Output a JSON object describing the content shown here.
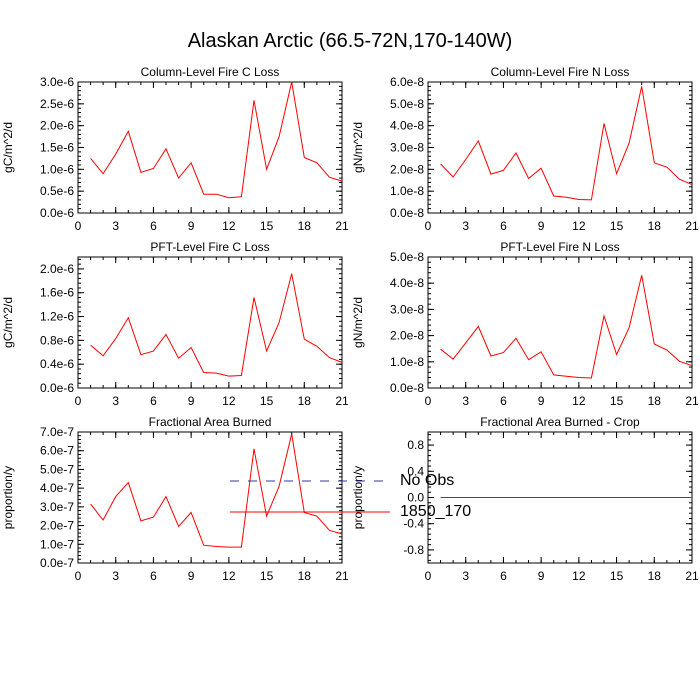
{
  "title": "Alaskan Arctic (66.5-72N,170-140W)",
  "colors": {
    "line": "#ff0000",
    "obs": "#3333aa",
    "axis": "#000000"
  },
  "legend": [
    {
      "label": "No Obs",
      "style": "dashed",
      "color": "#3333aa"
    },
    {
      "label": "1850_170",
      "style": "solid",
      "color": "#ff0000"
    }
  ],
  "chart_data": [
    {
      "type": "line",
      "title": "Column-Level Fire C Loss",
      "ylabel": "gC/m^2/d",
      "xlim": [
        0,
        21
      ],
      "ylim": [
        0,
        3e-06
      ],
      "yticks": [
        0,
        5e-07,
        1e-06,
        1.5e-06,
        2e-06,
        2.5e-06,
        3e-06
      ],
      "ytick_labels": [
        "0.0e-6",
        "0.5e-6",
        "1.0e-6",
        "1.5e-6",
        "2.0e-6",
        "2.5e-6",
        "3.0e-6"
      ],
      "xticks": [
        0,
        3,
        6,
        9,
        12,
        15,
        18,
        21
      ],
      "xtick_labels": [
        "0",
        "3",
        "6",
        "9",
        "12",
        "15",
        "18",
        "21"
      ],
      "series": [
        {
          "name": "1850_170",
          "x": [
            1,
            2,
            3,
            4,
            5,
            6,
            7,
            8,
            9,
            10,
            11,
            12,
            13,
            14,
            15,
            16,
            17,
            18,
            19,
            20,
            21
          ],
          "values": [
            1.25e-06,
            9e-07,
            1.35e-06,
            1.87e-06,
            9.3e-07,
            1.02e-06,
            1.47e-06,
            8e-07,
            1.15e-06,
            4.3e-07,
            4.3e-07,
            3.5e-07,
            3.7e-07,
            2.58e-06,
            1e-06,
            1.75e-06,
            3e-06,
            1.27e-06,
            1.15e-06,
            8.2e-07,
            7.3e-07
          ]
        }
      ]
    },
    {
      "type": "line",
      "title": "Column-Level Fire N Loss",
      "ylabel": "gN/m^2/d",
      "xlim": [
        0,
        21
      ],
      "ylim": [
        0,
        6e-08
      ],
      "yticks": [
        0,
        1e-08,
        2e-08,
        3e-08,
        4e-08,
        5e-08,
        6e-08
      ],
      "ytick_labels": [
        "0.0e-8",
        "1.0e-8",
        "2.0e-8",
        "3.0e-8",
        "4.0e-8",
        "5.0e-8",
        "6.0e-8"
      ],
      "xticks": [
        0,
        3,
        6,
        9,
        12,
        15,
        18,
        21
      ],
      "xtick_labels": [
        "0",
        "3",
        "6",
        "9",
        "12",
        "15",
        "18",
        "21"
      ],
      "series": [
        {
          "name": "1850_170",
          "x": [
            1,
            2,
            3,
            4,
            5,
            6,
            7,
            8,
            9,
            10,
            11,
            12,
            13,
            14,
            15,
            16,
            17,
            18,
            19,
            20,
            21
          ],
          "values": [
            2.25e-08,
            1.65e-08,
            2.45e-08,
            3.3e-08,
            1.78e-08,
            1.95e-08,
            2.75e-08,
            1.58e-08,
            2.05e-08,
            7.8e-09,
            7.2e-09,
            6.2e-09,
            6e-09,
            4.1e-08,
            1.8e-08,
            3.2e-08,
            5.8e-08,
            2.3e-08,
            2.1e-08,
            1.55e-08,
            1.3e-08
          ]
        }
      ]
    },
    {
      "type": "line",
      "title": "PFT-Level Fire C Loss",
      "ylabel": "gC/m^2/d",
      "xlim": [
        0,
        21
      ],
      "ylim": [
        0,
        2.2e-06
      ],
      "yticks": [
        0,
        4e-07,
        8e-07,
        1.2e-06,
        1.6e-06,
        2e-06
      ],
      "ytick_labels": [
        "0.0e-6",
        "0.4e-6",
        "0.8e-6",
        "1.2e-6",
        "1.6e-6",
        "2.0e-6"
      ],
      "xticks": [
        0,
        3,
        6,
        9,
        12,
        15,
        18,
        21
      ],
      "xtick_labels": [
        "0",
        "3",
        "6",
        "9",
        "12",
        "15",
        "18",
        "21"
      ],
      "series": [
        {
          "name": "1850_170",
          "x": [
            1,
            2,
            3,
            4,
            5,
            6,
            7,
            8,
            9,
            10,
            11,
            12,
            13,
            14,
            15,
            16,
            17,
            18,
            19,
            20,
            21
          ],
          "values": [
            7.2e-07,
            5.4e-07,
            8.3e-07,
            1.18e-06,
            5.6e-07,
            6.2e-07,
            9e-07,
            5e-07,
            6.8e-07,
            2.6e-07,
            2.5e-07,
            2e-07,
            2.1e-07,
            1.52e-06,
            6.2e-07,
            1.1e-06,
            1.92e-06,
            8.2e-07,
            7e-07,
            5.1e-07,
            4.3e-07
          ]
        }
      ]
    },
    {
      "type": "line",
      "title": "PFT-Level Fire N Loss",
      "ylabel": "gN/m^2/d",
      "xlim": [
        0,
        21
      ],
      "ylim": [
        0,
        5e-08
      ],
      "yticks": [
        0,
        1e-08,
        2e-08,
        3e-08,
        4e-08,
        5e-08
      ],
      "ytick_labels": [
        "0.0e-8",
        "1.0e-8",
        "2.0e-8",
        "3.0e-8",
        "4.0e-8",
        "5.0e-8"
      ],
      "xticks": [
        0,
        3,
        6,
        9,
        12,
        15,
        18,
        21
      ],
      "xtick_labels": [
        "0",
        "3",
        "6",
        "9",
        "12",
        "15",
        "18",
        "21"
      ],
      "series": [
        {
          "name": "1850_170",
          "x": [
            1,
            2,
            3,
            4,
            5,
            6,
            7,
            8,
            9,
            10,
            11,
            12,
            13,
            14,
            15,
            16,
            17,
            18,
            19,
            20,
            21
          ],
          "values": [
            1.48e-08,
            1.1e-08,
            1.72e-08,
            2.35e-08,
            1.22e-08,
            1.35e-08,
            1.9e-08,
            1.08e-08,
            1.38e-08,
            5e-09,
            4.5e-09,
            4e-09,
            3.8e-09,
            2.75e-08,
            1.28e-08,
            2.3e-08,
            4.3e-08,
            1.68e-08,
            1.45e-08,
            1.02e-08,
            8.5e-09
          ]
        }
      ]
    },
    {
      "type": "line",
      "title": "Fractional Area Burned",
      "ylabel": "proportion/y",
      "xlim": [
        0,
        21
      ],
      "ylim": [
        0,
        7e-07
      ],
      "yticks": [
        0,
        1e-07,
        2e-07,
        3e-07,
        4e-07,
        5e-07,
        6e-07,
        7e-07
      ],
      "ytick_labels": [
        "0.0e-7",
        "1.0e-7",
        "2.0e-7",
        "3.0e-7",
        "4.0e-7",
        "5.0e-7",
        "6.0e-7",
        "7.0e-7"
      ],
      "xticks": [
        0,
        3,
        6,
        9,
        12,
        15,
        18,
        21
      ],
      "xtick_labels": [
        "0",
        "3",
        "6",
        "9",
        "12",
        "15",
        "18",
        "21"
      ],
      "series": [
        {
          "name": "1850_170",
          "x": [
            1,
            2,
            3,
            4,
            5,
            6,
            7,
            8,
            9,
            10,
            11,
            12,
            13,
            14,
            15,
            16,
            17,
            18,
            19,
            20,
            21
          ],
          "values": [
            3.15e-07,
            2.3e-07,
            3.55e-07,
            4.3e-07,
            2.25e-07,
            2.45e-07,
            3.55e-07,
            1.95e-07,
            2.7e-07,
            9.5e-08,
            8.8e-08,
            8.5e-08,
            8.5e-08,
            6.1e-07,
            2.5e-07,
            4.1e-07,
            6.9e-07,
            2.7e-07,
            2.5e-07,
            1.75e-07,
            1.55e-07
          ]
        }
      ]
    },
    {
      "type": "line",
      "title": "Fractional Area Burned - Crop",
      "ylabel": "proportion/y",
      "xlim": [
        0,
        21
      ],
      "ylim": [
        -1.0,
        1.0
      ],
      "yticks": [
        -0.8,
        -0.4,
        0.0,
        0.4,
        0.8
      ],
      "ytick_labels": [
        "-0.8",
        "-0.4",
        "0.0",
        "0.4",
        "0.8"
      ],
      "xticks": [
        0,
        3,
        6,
        9,
        12,
        15,
        18,
        21
      ],
      "xtick_labels": [
        "0",
        "3",
        "6",
        "9",
        "12",
        "15",
        "18",
        "21"
      ],
      "series": [
        {
          "name": "1850_170",
          "x": [
            1,
            2,
            3,
            4,
            5,
            6,
            7,
            8,
            9,
            10,
            11,
            12,
            13,
            14,
            15,
            16,
            17,
            18,
            19,
            20,
            21
          ],
          "values": [
            0,
            0,
            0,
            0,
            0,
            0,
            0,
            0,
            0,
            0,
            0,
            0,
            0,
            0,
            0,
            0,
            0,
            0,
            0,
            0,
            0
          ]
        }
      ]
    }
  ]
}
